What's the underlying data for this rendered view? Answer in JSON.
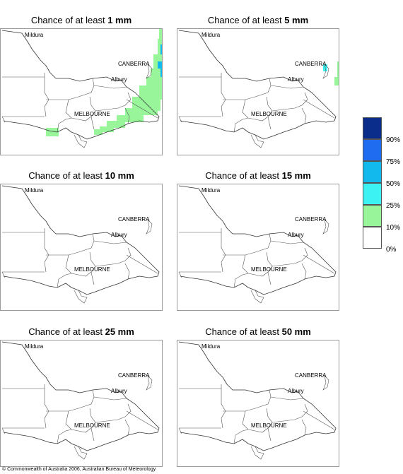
{
  "panels": [
    {
      "title_prefix": "Chance of at least ",
      "amount": "1 mm"
    },
    {
      "title_prefix": "Chance of at least ",
      "amount": "5 mm"
    },
    {
      "title_prefix": "Chance of at least ",
      "amount": "10 mm"
    },
    {
      "title_prefix": "Chance of at least ",
      "amount": "15 mm"
    },
    {
      "title_prefix": "Chance of at least ",
      "amount": "25 mm"
    },
    {
      "title_prefix": "Chance of at least ",
      "amount": "50 mm"
    }
  ],
  "places": {
    "mildura": "Mildura",
    "canberra": "CANBERRA",
    "albury": "Albury",
    "melbourne": "MELBOURNE"
  },
  "legend": {
    "items": [
      {
        "label": "90%",
        "color": "#0a2d8c"
      },
      {
        "label": "75%",
        "color": "#1f6cf0"
      },
      {
        "label": "50%",
        "color": "#12b9ec"
      },
      {
        "label": "25%",
        "color": "#3cf2f2"
      },
      {
        "label": "10%",
        "color": "#98f59a"
      },
      {
        "label": "0%",
        "color": "#ffffff"
      }
    ]
  },
  "copyright": "© Commonwealth of Australia 2006, Australian Bureau of Meteorology"
}
